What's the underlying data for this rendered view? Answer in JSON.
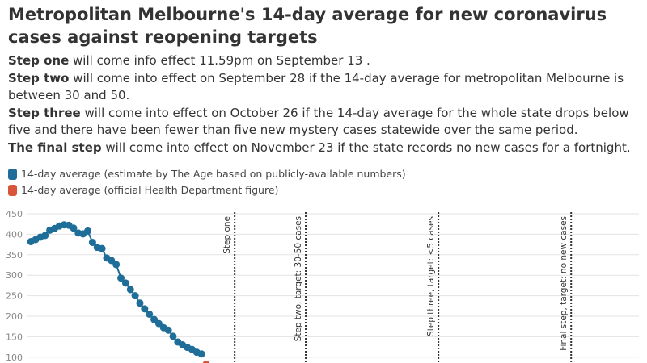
{
  "chart_data": {
    "type": "line",
    "title": "Metropolitan Melbourne's 14-day average for new coronavirus cases against reopening targets",
    "notes": [
      {
        "bold": "Step one",
        "text": " will come info effect 11.59pm on September 13 ."
      },
      {
        "bold": "Step two",
        "text": " will come into effect on September 28 if the 14-day average for metropolitan Melbourne is between 30 and 50."
      },
      {
        "bold": "Step three",
        "text": " will come into effect on October 26 if the 14-day average for the whole state drops below five and there have been fewer than five new mystery cases statewide over the same period."
      },
      {
        "bold": "The final step",
        "text": " will come into effect on November 23 if the state records no new cases for a fortnight."
      }
    ],
    "series": [
      {
        "name": "14-day average (estimate by The Age based on publicly-available numbers)",
        "color": "#1f6d99",
        "x": [
          0,
          1,
          2,
          3,
          4,
          5,
          6,
          7,
          8,
          9,
          10,
          11,
          12,
          13,
          14,
          15,
          16,
          17,
          18,
          19,
          20,
          21,
          22,
          23,
          24,
          25,
          26,
          27,
          28,
          29,
          30,
          31,
          32,
          33,
          34,
          35,
          36
        ],
        "values": [
          382,
          387,
          393,
          397,
          410,
          414,
          420,
          423,
          422,
          415,
          403,
          401,
          408,
          380,
          368,
          365,
          342,
          336,
          326,
          293,
          281,
          265,
          250,
          232,
          218,
          205,
          192,
          182,
          172,
          166,
          151,
          137,
          130,
          124,
          119,
          112,
          108
        ]
      },
      {
        "name": "14-day average (official Health Department figure)",
        "color": "#d9553a",
        "x": [
          37
        ],
        "values": [
          83
        ]
      }
    ],
    "annotations": [
      {
        "x": 43,
        "label": "Step one"
      },
      {
        "x": 58,
        "label": "Step two, target: 30-50 cases"
      },
      {
        "x": 86,
        "label": "Step three, target: <5 cases"
      },
      {
        "x": 114,
        "label": "Final step, target: no new cases"
      }
    ],
    "xlim": [
      -1.4,
      128.3
    ],
    "ylim": [
      85,
      450
    ],
    "yticks": [
      100,
      150,
      200,
      250,
      300,
      350,
      400,
      450
    ],
    "grid": true
  }
}
